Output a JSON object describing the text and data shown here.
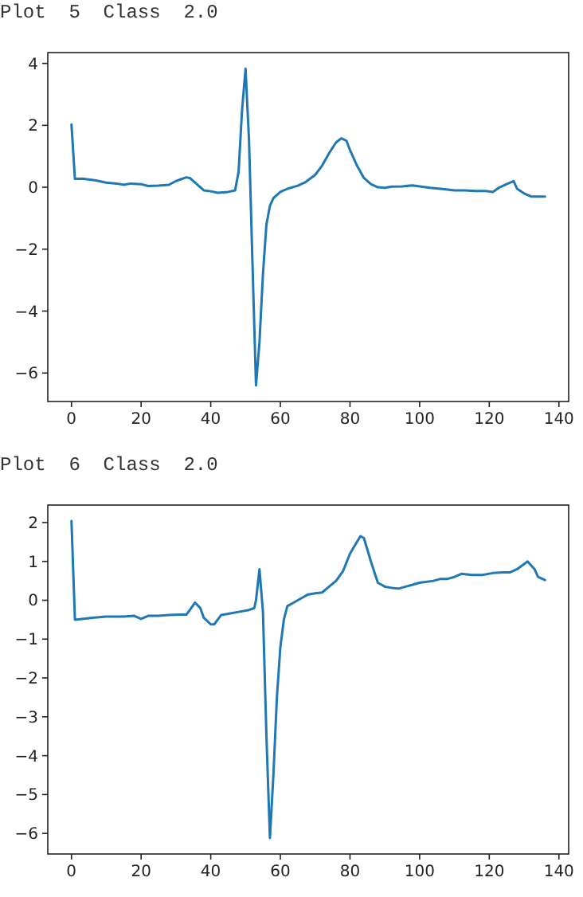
{
  "chart_data": [
    {
      "type": "line",
      "title": "Plot  5  Class  2.0",
      "grid": false,
      "xlim": [
        -6.8,
        142.8
      ],
      "ylim": [
        -6.92,
        4.35
      ],
      "xticks": [
        0,
        20,
        40,
        60,
        80,
        100,
        120,
        140
      ],
      "yticks": [
        {
          "value": -6,
          "label": "−6"
        },
        {
          "value": -4,
          "label": "−4"
        },
        {
          "value": -2,
          "label": "−2"
        },
        0,
        2,
        4
      ],
      "series": [
        {
          "color": "#1f77b4",
          "x": [
            0,
            1,
            3,
            5,
            7,
            10,
            13,
            15,
            17,
            20,
            22,
            25,
            28,
            30,
            33,
            34,
            36,
            38,
            40,
            42,
            45,
            47,
            48,
            49,
            50,
            51,
            52,
            53,
            54,
            55,
            56,
            57,
            58,
            60,
            62,
            65,
            67,
            70,
            72,
            74,
            76,
            77.5,
            79,
            80,
            82,
            84,
            86,
            88,
            90,
            92,
            95,
            98,
            100,
            103,
            106,
            110,
            113,
            116,
            119,
            121,
            123,
            125,
            127,
            128,
            130,
            132,
            134,
            136
          ],
          "values": [
            2.03,
            0.27,
            0.28,
            0.25,
            0.22,
            0.15,
            0.12,
            0.08,
            0.12,
            0.1,
            0.04,
            0.05,
            0.08,
            0.2,
            0.32,
            0.3,
            0.1,
            -0.1,
            -0.13,
            -0.18,
            -0.15,
            -0.1,
            0.5,
            2.5,
            3.83,
            1.5,
            -2.5,
            -6.4,
            -5.0,
            -2.8,
            -1.2,
            -0.6,
            -0.35,
            -0.15,
            -0.05,
            0.05,
            0.15,
            0.4,
            0.7,
            1.1,
            1.45,
            1.58,
            1.5,
            1.2,
            0.7,
            0.3,
            0.1,
            0.0,
            -0.02,
            0.02,
            0.03,
            0.06,
            0.03,
            -0.02,
            -0.05,
            -0.1,
            -0.1,
            -0.12,
            -0.12,
            -0.15,
            0.0,
            0.1,
            0.2,
            -0.05,
            -0.2,
            -0.3,
            -0.3,
            -0.3
          ]
        }
      ]
    },
    {
      "type": "line",
      "title": "Plot  6  Class  2.0",
      "grid": false,
      "xlim": [
        -6.8,
        142.8
      ],
      "ylim": [
        -6.53,
        2.45
      ],
      "xticks": [
        0,
        20,
        40,
        60,
        80,
        100,
        120,
        140
      ],
      "yticks": [
        {
          "value": -6,
          "label": "−6"
        },
        {
          "value": -5,
          "label": "−5"
        },
        {
          "value": -4,
          "label": "−4"
        },
        {
          "value": -3,
          "label": "−3"
        },
        {
          "value": -2,
          "label": "−2"
        },
        {
          "value": -1,
          "label": "−1"
        },
        0,
        1,
        2
      ],
      "series": [
        {
          "color": "#1f77b4",
          "x": [
            0,
            1,
            3,
            6,
            10,
            15,
            18,
            20,
            22,
            25,
            28,
            31,
            33,
            34,
            35.5,
            37,
            38,
            40,
            41,
            42,
            43,
            45,
            48,
            51,
            52.5,
            53,
            54,
            55,
            56,
            57,
            58,
            59,
            60,
            61,
            62,
            64,
            66,
            68,
            70,
            72,
            74,
            76,
            78,
            80,
            82,
            83,
            84,
            86,
            88,
            90,
            92,
            94,
            96,
            98,
            100,
            104,
            106,
            108,
            110,
            112,
            115,
            118,
            121,
            124,
            126,
            128,
            131,
            133,
            134,
            136
          ],
          "values": [
            2.04,
            -0.5,
            -0.48,
            -0.45,
            -0.42,
            -0.42,
            -0.4,
            -0.48,
            -0.4,
            -0.4,
            -0.38,
            -0.37,
            -0.37,
            -0.25,
            -0.06,
            -0.2,
            -0.45,
            -0.62,
            -0.62,
            -0.5,
            -0.38,
            -0.35,
            -0.3,
            -0.25,
            -0.2,
            0.0,
            0.8,
            -0.3,
            -3.5,
            -6.12,
            -4.5,
            -2.5,
            -1.2,
            -0.5,
            -0.15,
            -0.05,
            0.05,
            0.15,
            0.18,
            0.2,
            0.35,
            0.5,
            0.75,
            1.2,
            1.5,
            1.65,
            1.6,
            1.0,
            0.45,
            0.35,
            0.32,
            0.3,
            0.35,
            0.4,
            0.45,
            0.5,
            0.55,
            0.55,
            0.6,
            0.68,
            0.65,
            0.65,
            0.7,
            0.72,
            0.72,
            0.8,
            1.0,
            0.8,
            0.6,
            0.52
          ]
        }
      ]
    }
  ]
}
